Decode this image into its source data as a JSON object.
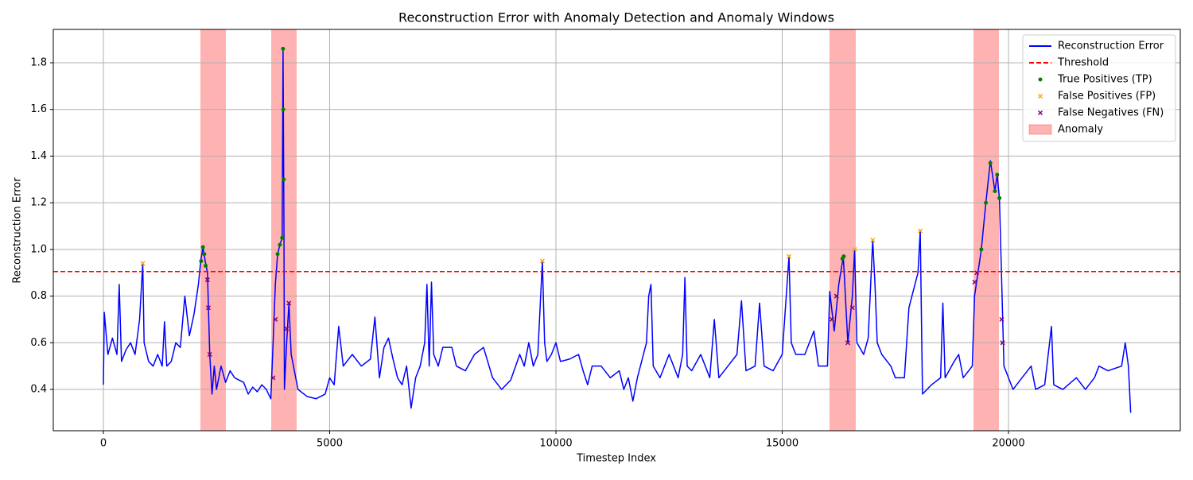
{
  "chart_data": {
    "type": "line",
    "title": "Reconstruction Error with Anomaly Detection and Anomaly Windows",
    "x_label": "Timestep Index",
    "y_label": "Reconstruction Error",
    "xlim": [
      -1107,
      23796
    ],
    "ylim": [
      0.223,
      1.943
    ],
    "xticks": [
      0,
      5000,
      10000,
      15000,
      20000
    ],
    "yticks": [
      0.4,
      0.6,
      0.8,
      {
        "value": 1,
        "label": "1.0"
      },
      1.2,
      1.4,
      1.6,
      1.8
    ],
    "grid": true,
    "legend": "upper right",
    "threshold": {
      "name": "Threshold",
      "value": 0.905,
      "color": "#ff0000"
    },
    "windows": {
      "name": "Anomaly",
      "color": "#ff0000",
      "ranges": [
        [
          2144,
          2707
        ],
        [
          3708,
          4271
        ],
        [
          16045,
          16625
        ],
        [
          19227,
          19789
        ]
      ]
    },
    "series": [
      {
        "name": "Reconstruction Error",
        "color": "#0000ff",
        "kind": "line",
        "x": [
          0,
          20,
          100,
          200,
          300,
          350,
          400,
          500,
          600,
          700,
          800,
          870,
          900,
          1000,
          1100,
          1200,
          1300,
          1350,
          1400,
          1500,
          1600,
          1700,
          1800,
          1900,
          2000,
          2100,
          2150,
          2200,
          2250,
          2300,
          2350,
          2400,
          2450,
          2500,
          2600,
          2700,
          2800,
          2900,
          3000,
          3100,
          3200,
          3300,
          3400,
          3500,
          3600,
          3700,
          3750,
          3800,
          3850,
          3900,
          3950,
          3970,
          3990,
          4000,
          4050,
          4100,
          4150,
          4200,
          4300,
          4500,
          4700,
          4900,
          5000,
          5100,
          5200,
          5300,
          5500,
          5700,
          5900,
          6000,
          6100,
          6200,
          6300,
          6400,
          6500,
          6600,
          6700,
          6800,
          6900,
          7000,
          7100,
          7150,
          7200,
          7250,
          7300,
          7400,
          7500,
          7700,
          7800,
          8000,
          8200,
          8400,
          8600,
          8800,
          9000,
          9200,
          9300,
          9400,
          9500,
          9600,
          9700,
          9750,
          9800,
          9900,
          10000,
          10100,
          10300,
          10500,
          10600,
          10700,
          10800,
          11000,
          11200,
          11400,
          11500,
          11600,
          11700,
          11800,
          12000,
          12050,
          12100,
          12150,
          12300,
          12500,
          12600,
          12700,
          12800,
          12850,
          12900,
          13000,
          13200,
          13400,
          13500,
          13600,
          13800,
          14000,
          14100,
          14200,
          14400,
          14500,
          14600,
          14800,
          15000,
          15150,
          15200,
          15300,
          15500,
          15700,
          15800,
          16000,
          16050,
          16150,
          16250,
          16350,
          16450,
          16550,
          16600,
          16650,
          16800,
          16900,
          17000,
          17050,
          17100,
          17200,
          17400,
          17500,
          17700,
          17800,
          18000,
          18050,
          18100,
          18300,
          18500,
          18550,
          18600,
          18800,
          18900,
          19000,
          19200,
          19250,
          19400,
          19500,
          19600,
          19700,
          19750,
          19800,
          19900,
          20000,
          20100,
          20300,
          20500,
          20600,
          20800,
          20950,
          21000,
          21200,
          21500,
          21700,
          21900,
          22000,
          22200,
          22500,
          22580,
          22650,
          22700
        ],
        "values": [
          0.42,
          0.73,
          0.55,
          0.62,
          0.55,
          0.85,
          0.52,
          0.57,
          0.6,
          0.55,
          0.7,
          0.94,
          0.6,
          0.52,
          0.5,
          0.55,
          0.5,
          0.69,
          0.5,
          0.52,
          0.6,
          0.58,
          0.8,
          0.63,
          0.72,
          0.85,
          0.95,
          1.01,
          0.95,
          0.9,
          0.55,
          0.38,
          0.5,
          0.4,
          0.5,
          0.43,
          0.48,
          0.45,
          0.44,
          0.43,
          0.38,
          0.41,
          0.39,
          0.42,
          0.4,
          0.36,
          0.6,
          0.85,
          0.98,
          1.02,
          1.05,
          1.86,
          1.1,
          0.4,
          0.6,
          0.77,
          0.55,
          0.5,
          0.4,
          0.37,
          0.36,
          0.38,
          0.45,
          0.42,
          0.67,
          0.5,
          0.55,
          0.5,
          0.53,
          0.71,
          0.45,
          0.58,
          0.62,
          0.53,
          0.45,
          0.42,
          0.5,
          0.32,
          0.45,
          0.5,
          0.6,
          0.85,
          0.5,
          0.86,
          0.55,
          0.5,
          0.58,
          0.58,
          0.5,
          0.48,
          0.55,
          0.58,
          0.45,
          0.4,
          0.44,
          0.55,
          0.5,
          0.6,
          0.5,
          0.55,
          0.95,
          0.6,
          0.52,
          0.55,
          0.6,
          0.52,
          0.53,
          0.55,
          0.48,
          0.42,
          0.5,
          0.5,
          0.45,
          0.48,
          0.4,
          0.45,
          0.35,
          0.45,
          0.6,
          0.8,
          0.85,
          0.5,
          0.45,
          0.55,
          0.5,
          0.45,
          0.55,
          0.88,
          0.5,
          0.48,
          0.55,
          0.45,
          0.7,
          0.45,
          0.5,
          0.55,
          0.78,
          0.48,
          0.5,
          0.77,
          0.5,
          0.48,
          0.55,
          0.97,
          0.6,
          0.55,
          0.55,
          0.65,
          0.5,
          0.5,
          0.82,
          0.65,
          0.85,
          0.97,
          0.6,
          0.8,
          1.0,
          0.6,
          0.55,
          0.62,
          1.04,
          0.85,
          0.6,
          0.55,
          0.5,
          0.45,
          0.45,
          0.75,
          0.9,
          1.08,
          0.38,
          0.42,
          0.45,
          0.77,
          0.45,
          0.52,
          0.55,
          0.45,
          0.5,
          0.8,
          1.0,
          1.2,
          1.38,
          1.25,
          1.32,
          1.22,
          0.5,
          0.45,
          0.4,
          0.45,
          0.5,
          0.4,
          0.42,
          0.67,
          0.42,
          0.4,
          0.45,
          0.4,
          0.45,
          0.5,
          0.48,
          0.5,
          0.6,
          0.5,
          0.3
        ]
      },
      {
        "name": "True Positives (TP)",
        "color": "#008000",
        "kind": "scatter",
        "marker": "circle",
        "x": [
          2160,
          2200,
          2230,
          2260,
          3850,
          3900,
          3950,
          3970,
          3975,
          3985,
          16330,
          16360,
          19400,
          19500,
          19600,
          19700,
          19750,
          19800
        ],
        "values": [
          0.95,
          1.01,
          0.98,
          0.93,
          0.98,
          1.02,
          1.05,
          1.86,
          1.6,
          1.3,
          0.96,
          0.97,
          1.0,
          1.2,
          1.37,
          1.25,
          1.32,
          1.22
        ]
      },
      {
        "name": "False Positives (FP)",
        "color": "#ffa500",
        "kind": "scatter",
        "marker": "x",
        "x": [
          870,
          9700,
          15150,
          16600,
          17000,
          18050
        ],
        "values": [
          0.94,
          0.95,
          0.97,
          1.0,
          1.04,
          1.08
        ]
      },
      {
        "name": "False Negatives (FN)",
        "color": "#800080",
        "kind": "scatter",
        "marker": "x",
        "x": [
          2300,
          2320,
          2350,
          3750,
          3800,
          4050,
          4100,
          16100,
          16200,
          16450,
          16550,
          19250,
          19300,
          19850,
          19870
        ],
        "values": [
          0.87,
          0.75,
          0.55,
          0.45,
          0.7,
          0.66,
          0.77,
          0.7,
          0.8,
          0.6,
          0.75,
          0.86,
          0.9,
          0.7,
          0.6
        ]
      }
    ]
  }
}
